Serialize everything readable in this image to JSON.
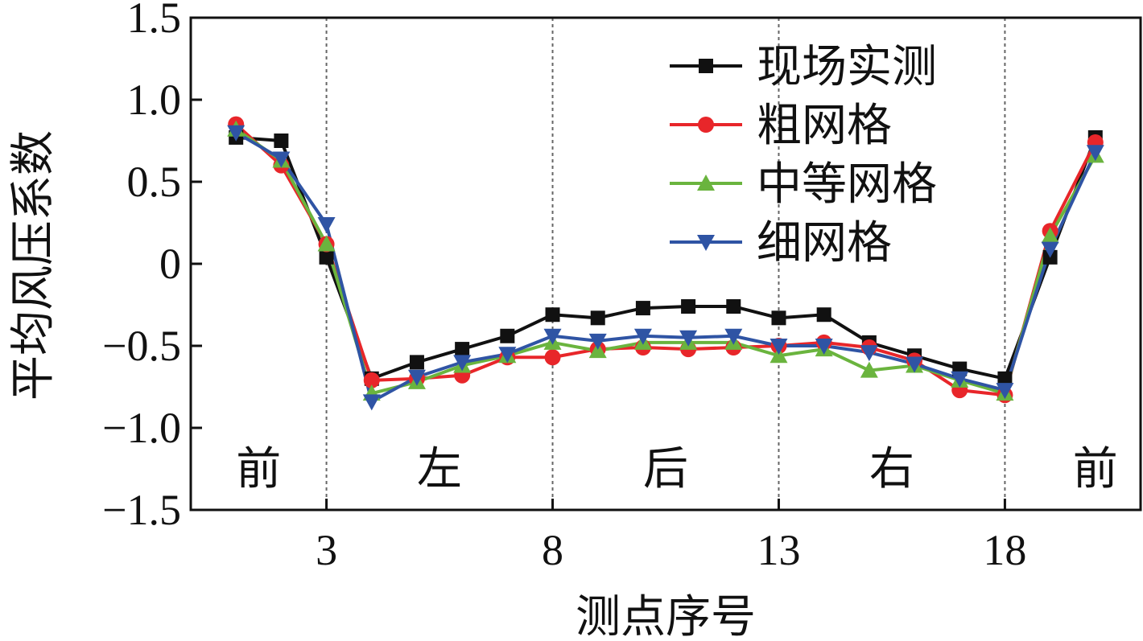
{
  "chart_data": {
    "type": "line",
    "xlabel": "测点序号",
    "ylabel": "平均风压系数",
    "xlim": [
      0,
      21
    ],
    "ylim": [
      -1.5,
      1.5
    ],
    "x_ticks": [
      3,
      8,
      13,
      18
    ],
    "y_ticks": [
      1.5,
      1.0,
      0.5,
      0,
      -0.5,
      -1.0,
      -1.5
    ],
    "y_tick_labels": [
      "1.5",
      "1.0",
      "0.5",
      "0",
      "−0.5",
      "−1.0",
      "−1.5"
    ],
    "section_dividers": [
      3,
      8,
      13,
      18
    ],
    "regions": [
      {
        "label": "前",
        "x": 1.5
      },
      {
        "label": "左",
        "x": 5.5
      },
      {
        "label": "后",
        "x": 10.5
      },
      {
        "label": "右",
        "x": 15.5
      },
      {
        "label": "前",
        "x": 20
      }
    ],
    "grid": false,
    "legend_position": "top-right",
    "x": [
      1,
      2,
      3,
      4,
      5,
      6,
      7,
      8,
      9,
      10,
      11,
      12,
      13,
      14,
      15,
      16,
      17,
      18,
      19,
      20
    ],
    "series": [
      {
        "name": "现场实测",
        "color": "#111111",
        "marker": "square",
        "values": [
          0.77,
          0.75,
          0.04,
          -0.7,
          -0.6,
          -0.52,
          -0.44,
          -0.31,
          -0.33,
          -0.27,
          -0.26,
          -0.26,
          -0.33,
          -0.31,
          -0.48,
          -0.56,
          -0.64,
          -0.7,
          0.04,
          0.77
        ]
      },
      {
        "name": "粗网格",
        "color": "#e8262a",
        "marker": "circle",
        "values": [
          0.85,
          0.6,
          0.12,
          -0.71,
          -0.7,
          -0.68,
          -0.57,
          -0.57,
          -0.52,
          -0.51,
          -0.52,
          -0.51,
          -0.5,
          -0.48,
          -0.51,
          -0.59,
          -0.77,
          -0.8,
          0.2,
          0.74
        ]
      },
      {
        "name": "中等网格",
        "color": "#6ab43e",
        "marker": "triangle-up",
        "values": [
          0.82,
          0.63,
          0.12,
          -0.79,
          -0.72,
          -0.62,
          -0.56,
          -0.48,
          -0.53,
          -0.48,
          -0.48,
          -0.48,
          -0.56,
          -0.52,
          -0.65,
          -0.62,
          -0.71,
          -0.79,
          0.17,
          0.66
        ]
      },
      {
        "name": "细网格",
        "color": "#2f54a4",
        "marker": "triangle-down",
        "values": [
          0.8,
          0.64,
          0.24,
          -0.84,
          -0.69,
          -0.6,
          -0.55,
          -0.44,
          -0.47,
          -0.44,
          -0.45,
          -0.44,
          -0.5,
          -0.5,
          -0.54,
          -0.61,
          -0.7,
          -0.77,
          0.09,
          0.68
        ]
      }
    ]
  }
}
